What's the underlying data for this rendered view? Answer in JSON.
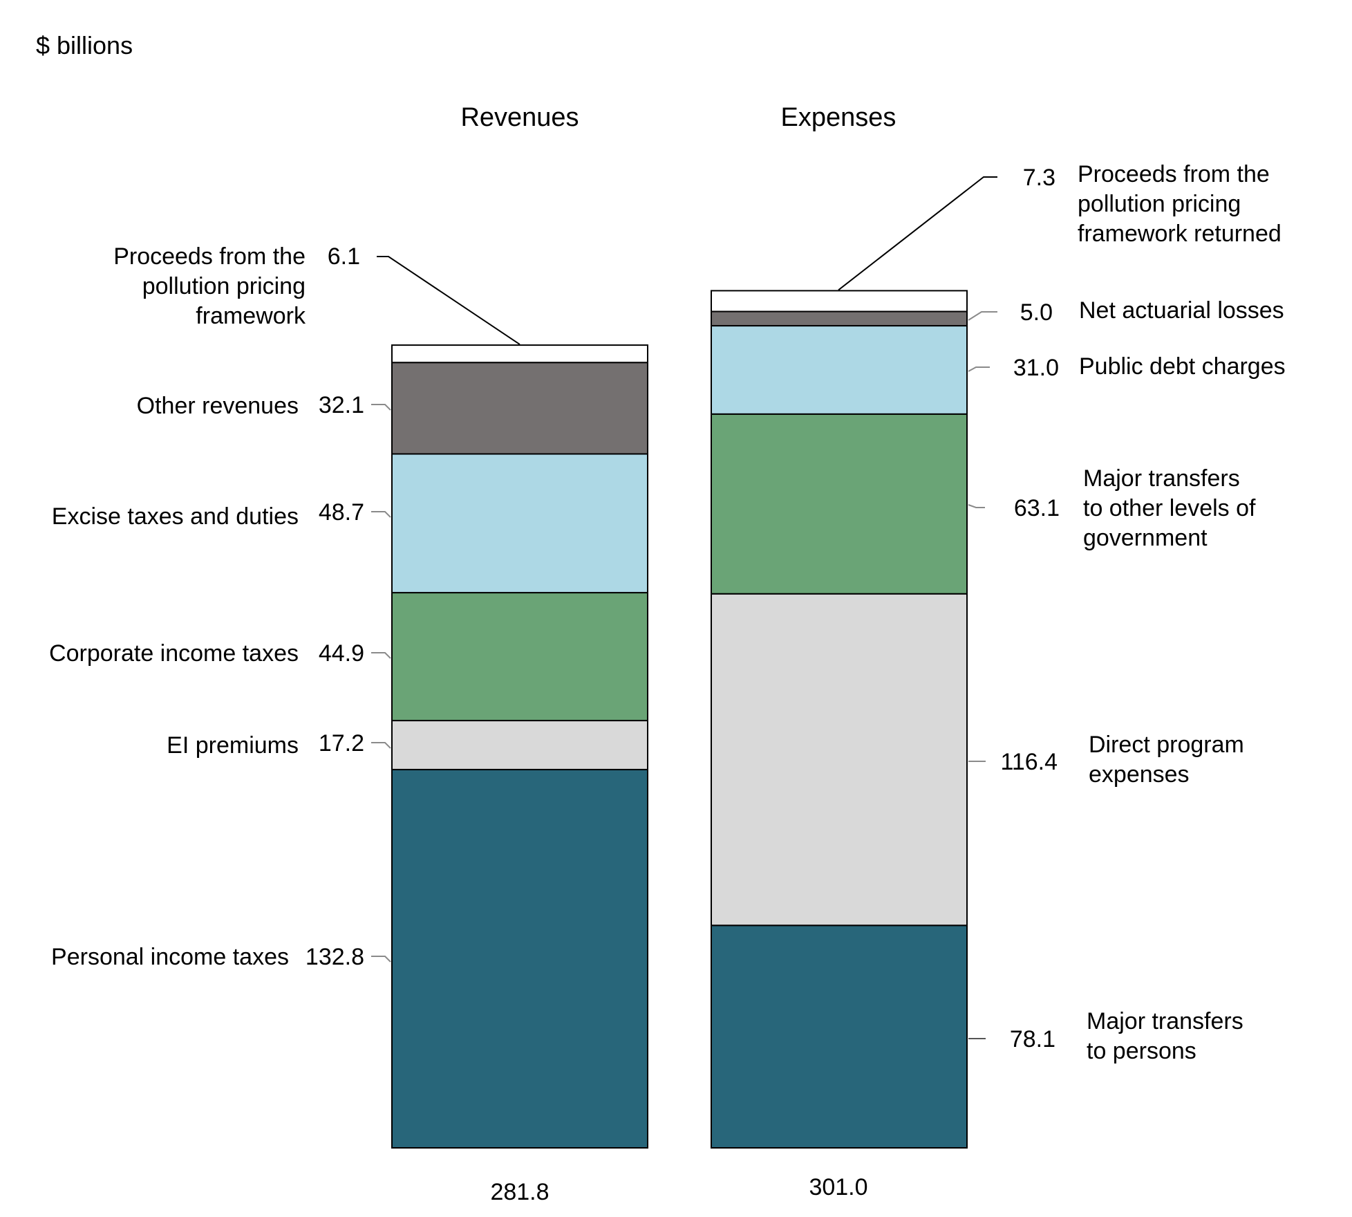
{
  "chart_data": {
    "type": "bar",
    "stacked": true,
    "unit_label": "$ billions",
    "columns": [
      {
        "name": "Revenues",
        "total": "281.8",
        "segments": [
          {
            "label": "Personal income taxes",
            "value": 132.8,
            "value_label": "132.8",
            "color": "#28667a"
          },
          {
            "label": "EI premiums",
            "value": 17.2,
            "value_label": "17.2",
            "color": "#d9d9d9"
          },
          {
            "label": "Corporate income taxes",
            "value": 44.9,
            "value_label": "44.9",
            "color": "#6aa476"
          },
          {
            "label": "Excise taxes and duties",
            "value": 48.7,
            "value_label": "48.7",
            "color": "#add8e5"
          },
          {
            "label": "Other revenues",
            "value": 32.1,
            "value_label": "32.1",
            "color": "#747070"
          },
          {
            "label": "Proceeds from the pollution pricing framework",
            "lines": [
              "Proceeds from the",
              "pollution pricing",
              "framework"
            ],
            "value": 6.1,
            "value_label": "6.1",
            "color": "#ffffff"
          }
        ]
      },
      {
        "name": "Expenses",
        "total": "301.0",
        "segments": [
          {
            "label": "Major transfers to persons",
            "lines": [
              "Major transfers",
              "to persons"
            ],
            "value": 78.1,
            "value_label": "78.1",
            "color": "#28667a"
          },
          {
            "label": "Direct program expenses",
            "lines": [
              "Direct program",
              "expenses"
            ],
            "value": 116.4,
            "value_label": "116.4",
            "color": "#d9d9d9"
          },
          {
            "label": "Major transfers to other levels of government",
            "lines": [
              "Major transfers",
              "to other levels of",
              "government"
            ],
            "value": 63.1,
            "value_label": "63.1",
            "color": "#6aa476"
          },
          {
            "label": "Public debt charges",
            "lines": [
              "Public debt charges"
            ],
            "value": 31.0,
            "value_label": "31.0",
            "color": "#add8e5"
          },
          {
            "label": "Net actuarial losses",
            "lines": [
              "Net actuarial losses"
            ],
            "value": 5.0,
            "value_label": "5.0",
            "color": "#747070"
          },
          {
            "label": "Proceeds from the pollution pricing framework returned",
            "lines": [
              "Proceeds from the",
              "pollution pricing",
              "framework returned"
            ],
            "value": 7.3,
            "value_label": "7.3",
            "color": "#ffffff"
          }
        ]
      }
    ]
  }
}
